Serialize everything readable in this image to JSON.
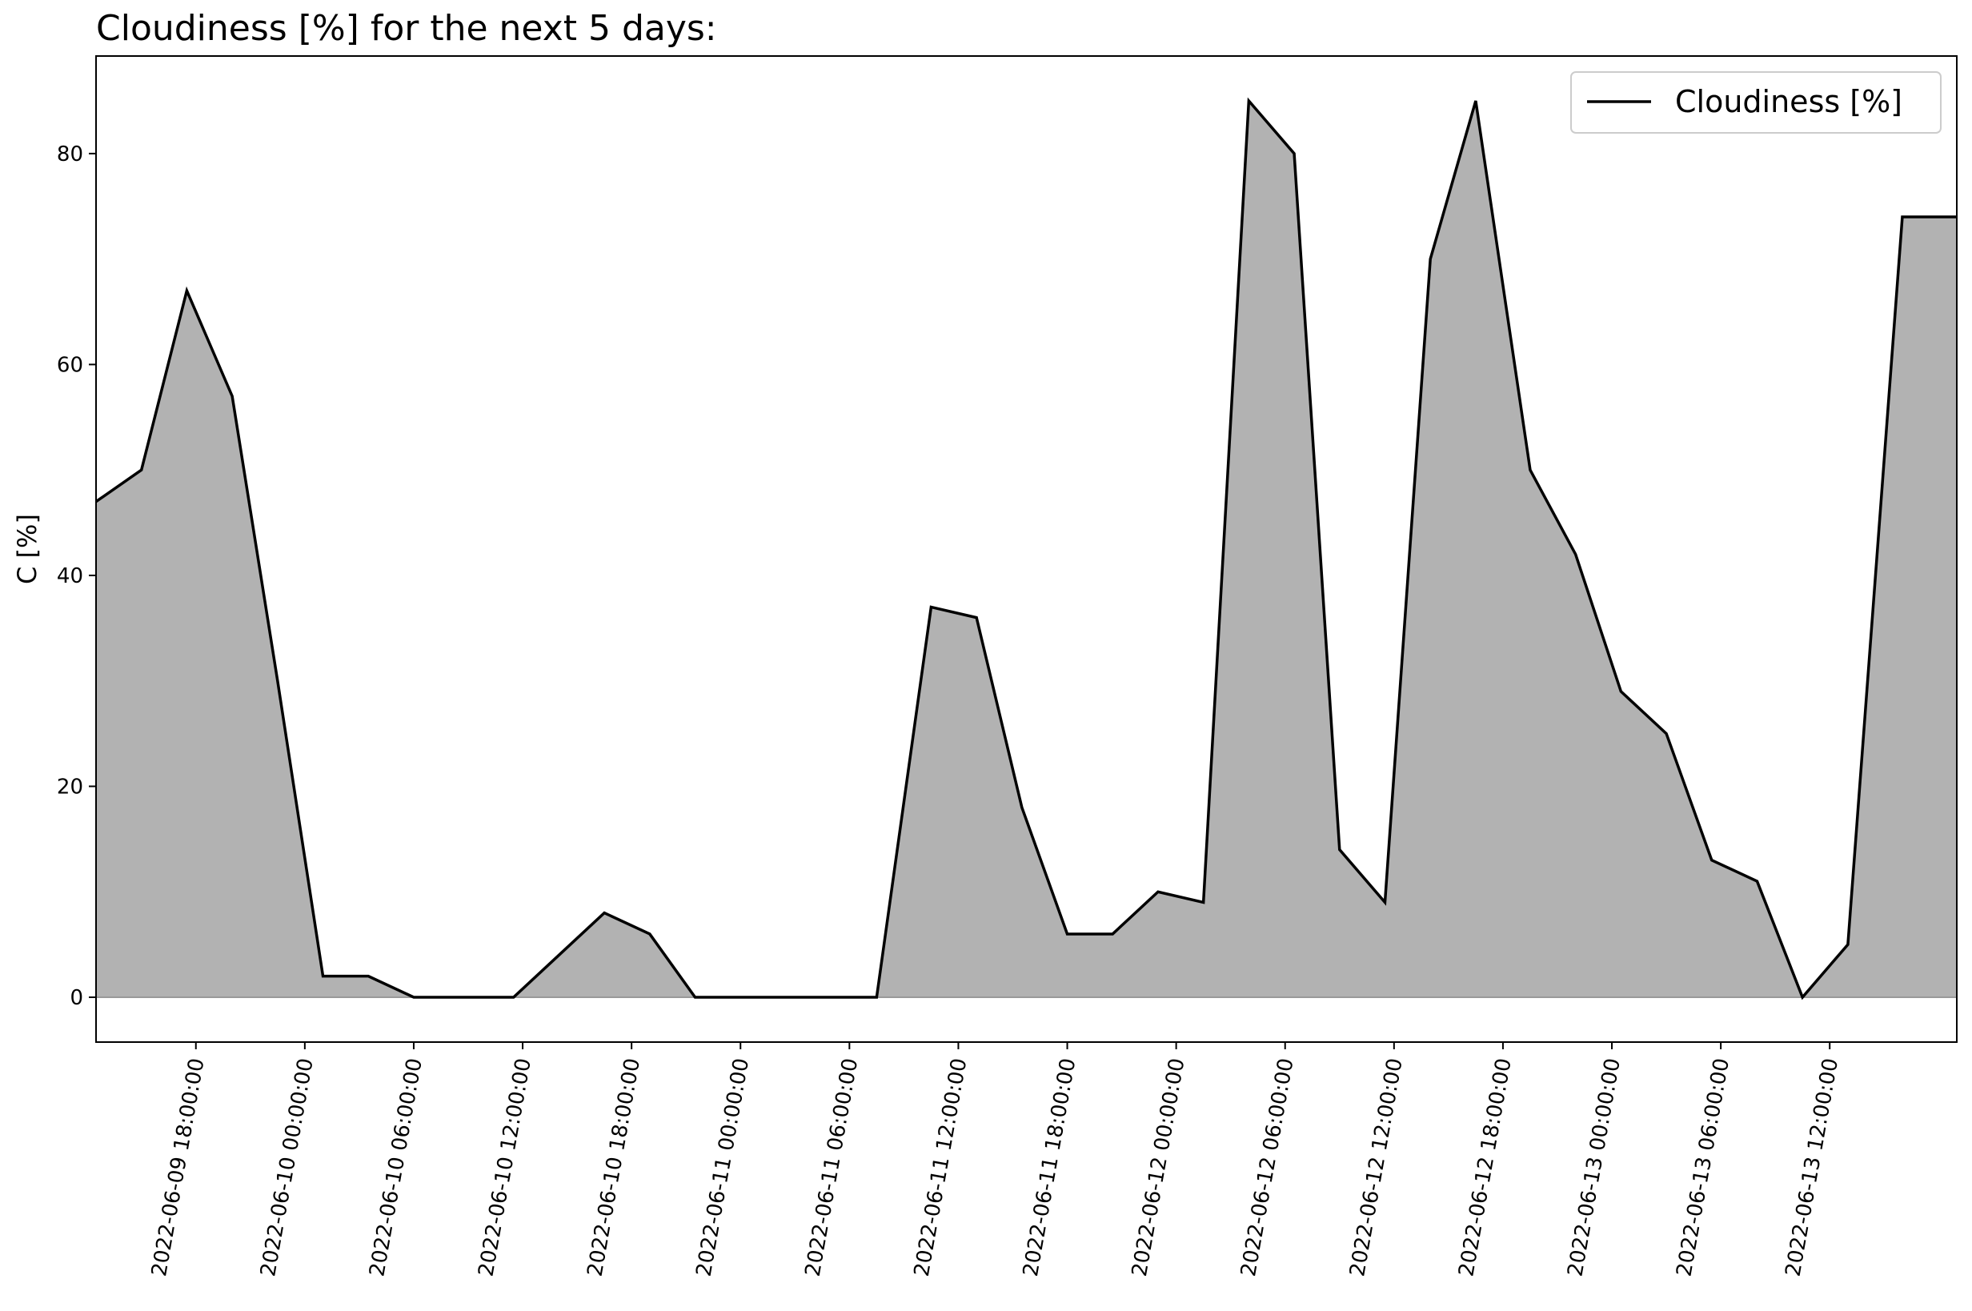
{
  "chart_data": {
    "type": "area",
    "title": "Cloudiness [%] for the next 5 days:",
    "xlabel": "",
    "ylabel": "C [%]",
    "ylim": [
      -4.25,
      89.25
    ],
    "yticks": [
      0,
      20,
      40,
      60,
      80
    ],
    "grid": false,
    "legend": {
      "placement": "top-right",
      "entries": [
        "Cloudiness [%]"
      ]
    },
    "colors": {
      "line": "#000000",
      "fill": "#b2b2b2",
      "baseline": "#999999"
    },
    "xlim": [
      "2022-06-09 12:30:00",
      "2022-06-13 19:00:00"
    ],
    "xticks": [
      "2022-06-09 18:00:00",
      "2022-06-10 00:00:00",
      "2022-06-10 06:00:00",
      "2022-06-10 12:00:00",
      "2022-06-10 18:00:00",
      "2022-06-11 00:00:00",
      "2022-06-11 06:00:00",
      "2022-06-11 12:00:00",
      "2022-06-11 18:00:00",
      "2022-06-12 00:00:00",
      "2022-06-12 06:00:00",
      "2022-06-12 12:00:00",
      "2022-06-12 18:00:00",
      "2022-06-13 00:00:00",
      "2022-06-13 06:00:00",
      "2022-06-13 12:00:00"
    ],
    "series": [
      {
        "name": "Cloudiness [%]",
        "x": [
          "2022-06-09 12:30:00",
          "2022-06-09 15:00:00",
          "2022-06-09 17:30:00",
          "2022-06-09 20:00:00",
          "2022-06-09 22:30:00",
          "2022-06-10 01:00:00",
          "2022-06-10 03:30:00",
          "2022-06-10 06:00:00",
          "2022-06-10 08:30:00",
          "2022-06-10 11:30:00",
          "2022-06-10 14:00:00",
          "2022-06-10 16:30:00",
          "2022-06-10 19:00:00",
          "2022-06-10 21:30:00",
          "2022-06-11 00:00:00",
          "2022-06-11 02:30:00",
          "2022-06-11 05:00:00",
          "2022-06-11 07:30:00",
          "2022-06-11 10:30:00",
          "2022-06-11 13:00:00",
          "2022-06-11 15:30:00",
          "2022-06-11 18:00:00",
          "2022-06-11 20:30:00",
          "2022-06-11 23:00:00",
          "2022-06-12 01:30:00",
          "2022-06-12 04:00:00",
          "2022-06-12 06:30:00",
          "2022-06-12 09:00:00",
          "2022-06-12 11:30:00",
          "2022-06-12 14:00:00",
          "2022-06-12 16:30:00",
          "2022-06-12 19:30:00",
          "2022-06-12 22:00:00",
          "2022-06-13 00:30:00",
          "2022-06-13 03:00:00",
          "2022-06-13 05:30:00",
          "2022-06-13 08:00:00",
          "2022-06-13 10:30:00",
          "2022-06-13 13:00:00",
          "2022-06-13 16:00:00",
          "2022-06-13 19:00:00"
        ],
        "values": [
          47,
          50,
          67,
          57,
          30,
          2,
          2,
          0,
          0,
          0,
          4,
          8,
          6,
          0,
          0,
          0,
          0,
          0,
          37,
          36,
          18,
          6,
          6,
          10,
          9,
          85,
          80,
          14,
          9,
          70,
          85,
          50,
          42,
          29,
          25,
          13,
          11,
          0,
          5,
          74,
          74
        ]
      }
    ]
  }
}
